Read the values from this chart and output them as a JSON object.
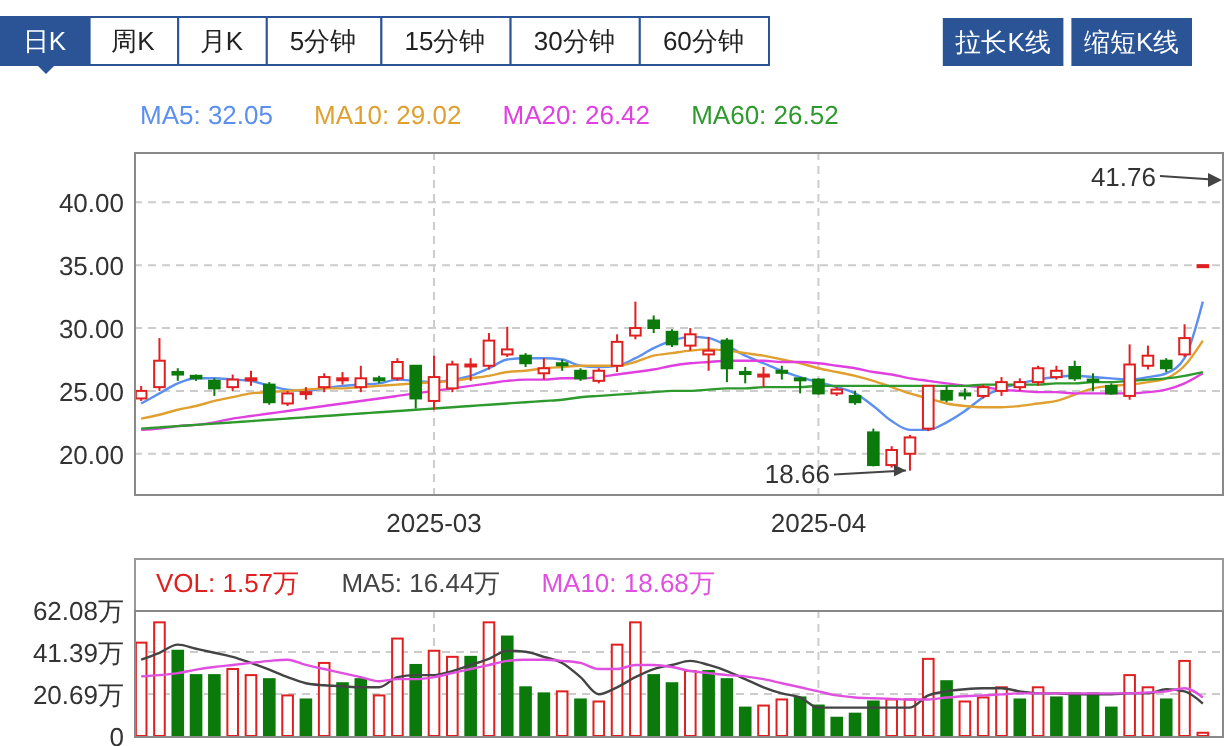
{
  "chart_data": [
    {
      "type": "other",
      "categories": [
        "日K",
        "周K",
        "月K",
        "5分钟",
        "15分钟",
        "30分钟",
        "60分钟"
      ],
      "annotations": [
        "拉长K线",
        "缩短K线"
      ]
    },
    {
      "type": "candlestick",
      "categories": [
        null,
        null,
        null,
        null,
        null,
        null,
        null,
        null,
        null,
        null,
        null,
        null,
        null,
        null,
        null,
        null,
        "2025-03",
        null,
        null,
        null,
        null,
        null,
        null,
        null,
        null,
        null,
        null,
        null,
        null,
        null,
        null,
        null,
        null,
        null,
        null,
        null,
        null,
        "2025-04",
        null,
        null,
        null,
        null,
        null,
        null,
        null,
        null,
        null,
        null,
        null,
        null,
        null,
        null,
        null,
        null,
        null,
        null,
        null,
        null,
        null
      ],
      "ohlc": [
        [
          24.4,
          25.4,
          24.2,
          25.0
        ],
        [
          25.3,
          29.2,
          25.0,
          27.4
        ],
        [
          26.5,
          26.8,
          25.8,
          26.3
        ],
        [
          26.2,
          26.3,
          25.8,
          26.0
        ],
        [
          25.8,
          26.0,
          24.6,
          25.2
        ],
        [
          25.3,
          26.3,
          25.0,
          25.9
        ],
        [
          25.9,
          26.6,
          25.4,
          26.0
        ],
        [
          25.5,
          25.7,
          23.9,
          24.1
        ],
        [
          24.0,
          25.0,
          23.8,
          24.8
        ],
        [
          24.8,
          25.3,
          24.3,
          24.9
        ],
        [
          25.3,
          26.4,
          24.9,
          26.1
        ],
        [
          25.9,
          26.5,
          25.5,
          26.0
        ],
        [
          25.3,
          27.0,
          24.9,
          26.0
        ],
        [
          26.0,
          26.2,
          25.6,
          25.9
        ],
        [
          26.0,
          27.6,
          25.8,
          27.3
        ],
        [
          27.0,
          27.0,
          23.6,
          24.4
        ],
        [
          24.2,
          27.8,
          23.5,
          26.1
        ],
        [
          25.2,
          27.4,
          24.9,
          27.1
        ],
        [
          27.0,
          27.6,
          25.8,
          27.1
        ],
        [
          27.0,
          29.6,
          26.7,
          29.0
        ],
        [
          27.9,
          30.1,
          27.7,
          28.3
        ],
        [
          27.8,
          28.0,
          26.9,
          27.2
        ],
        [
          26.4,
          27.6,
          25.9,
          26.8
        ],
        [
          27.2,
          27.5,
          26.6,
          27.1
        ],
        [
          26.6,
          26.8,
          25.8,
          26.0
        ],
        [
          25.8,
          26.8,
          25.6,
          26.6
        ],
        [
          27.0,
          29.5,
          26.5,
          28.9
        ],
        [
          29.4,
          32.1,
          29.1,
          30.0
        ],
        [
          30.6,
          31.0,
          29.6,
          30.0
        ],
        [
          29.7,
          29.9,
          28.5,
          28.7
        ],
        [
          28.6,
          30.0,
          28.2,
          29.5
        ],
        [
          27.9,
          29.3,
          26.6,
          28.2
        ],
        [
          29.0,
          29.2,
          25.7,
          26.8
        ],
        [
          26.5,
          26.9,
          25.6,
          26.4
        ],
        [
          26.2,
          26.9,
          25.3,
          26.3
        ],
        [
          26.6,
          27.0,
          25.9,
          26.5
        ],
        [
          26.0,
          26.1,
          24.8,
          25.9
        ],
        [
          25.9,
          26.0,
          24.7,
          24.8
        ],
        [
          24.8,
          25.3,
          24.6,
          25.1
        ],
        [
          24.6,
          25.0,
          23.9,
          24.1
        ],
        [
          21.7,
          22.0,
          19.0,
          19.1
        ],
        [
          19.1,
          20.6,
          18.9,
          20.3
        ],
        [
          20.0,
          21.5,
          18.66,
          21.3
        ],
        [
          22.0,
          25.4,
          21.8,
          25.4
        ],
        [
          25.0,
          25.4,
          24.1,
          24.3
        ],
        [
          24.8,
          25.2,
          24.3,
          24.7
        ],
        [
          24.6,
          25.5,
          24.4,
          25.3
        ],
        [
          25.0,
          26.1,
          24.6,
          25.7
        ],
        [
          25.3,
          26.0,
          25.0,
          25.7
        ],
        [
          25.7,
          27.0,
          25.4,
          26.8
        ],
        [
          26.1,
          27.0,
          25.9,
          26.6
        ],
        [
          26.9,
          27.4,
          25.8,
          26.0
        ],
        [
          25.9,
          26.4,
          25.0,
          25.8
        ],
        [
          25.4,
          25.6,
          24.7,
          24.8
        ],
        [
          24.6,
          28.7,
          24.3,
          27.1
        ],
        [
          27.0,
          28.6,
          26.7,
          27.8
        ],
        [
          27.4,
          27.6,
          26.5,
          26.8
        ],
        [
          27.9,
          30.3,
          27.7,
          29.2
        ],
        [
          35.0,
          35.0,
          35.0,
          35.0
        ]
      ],
      "series": [
        {
          "type": "line",
          "name": "MA5: 32.05",
          "color": "#5b8ff0",
          "values": [
            24.0,
            24.8,
            25.6,
            26.0,
            26.0,
            25.9,
            25.8,
            25.4,
            25.1,
            25.0,
            25.2,
            25.4,
            25.5,
            25.6,
            25.9,
            25.8,
            25.7,
            25.9,
            26.2,
            26.8,
            27.5,
            27.6,
            27.6,
            27.5,
            27.0,
            26.9,
            27.0,
            27.6,
            28.4,
            29.0,
            29.3,
            29.2,
            28.6,
            27.8,
            27.2,
            26.6,
            26.1,
            25.7,
            25.3,
            24.8,
            23.8,
            22.6,
            21.9,
            21.9,
            22.5,
            23.4,
            24.5,
            25.2,
            25.6,
            25.9,
            26.1,
            26.2,
            26.1,
            26.0,
            25.9,
            26.1,
            26.4,
            27.6,
            32.1
          ]
        },
        {
          "type": "line",
          "name": "MA10: 29.02",
          "color": "#e0a030",
          "values": [
            22.8,
            23.1,
            23.5,
            23.8,
            24.2,
            24.5,
            24.8,
            24.9,
            25.0,
            25.1,
            25.2,
            25.2,
            25.3,
            25.4,
            25.5,
            25.6,
            25.7,
            25.8,
            26.0,
            26.2,
            26.5,
            26.6,
            26.8,
            26.9,
            27.0,
            27.0,
            27.0,
            27.3,
            27.8,
            28.0,
            28.2,
            28.3,
            28.2,
            28.0,
            27.8,
            27.5,
            27.2,
            26.8,
            26.5,
            26.2,
            25.8,
            25.3,
            24.8,
            24.4,
            24.0,
            23.8,
            23.7,
            23.7,
            23.8,
            24.0,
            24.2,
            24.7,
            25.2,
            25.4,
            25.5,
            25.7,
            26.0,
            27.0,
            29.0
          ]
        },
        {
          "type": "line",
          "name": "MA20: 26.42",
          "color": "#e040e0",
          "values": [
            21.9,
            22.0,
            22.2,
            22.3,
            22.5,
            22.8,
            23.0,
            23.2,
            23.4,
            23.6,
            23.8,
            24.0,
            24.2,
            24.4,
            24.6,
            24.8,
            25.0,
            25.2,
            25.4,
            25.6,
            25.8,
            25.9,
            25.9,
            26.0,
            26.0,
            26.1,
            26.3,
            26.5,
            26.7,
            27.0,
            27.2,
            27.3,
            27.4,
            27.4,
            27.4,
            27.3,
            27.3,
            27.2,
            27.0,
            26.8,
            26.5,
            26.3,
            26.0,
            25.8,
            25.6,
            25.4,
            25.3,
            25.1,
            25.0,
            24.9,
            24.9,
            24.8,
            24.8,
            24.8,
            24.8,
            24.9,
            25.1,
            25.6,
            26.4
          ]
        },
        {
          "type": "line",
          "name": "MA60: 26.52",
          "color": "#2e9a2e",
          "values": [
            22.0,
            22.1,
            22.2,
            22.3,
            22.4,
            22.5,
            22.6,
            22.7,
            22.8,
            22.9,
            23.0,
            23.1,
            23.2,
            23.3,
            23.4,
            23.5,
            23.6,
            23.7,
            23.8,
            23.9,
            24.0,
            24.1,
            24.2,
            24.3,
            24.5,
            24.6,
            24.7,
            24.8,
            24.9,
            25.0,
            25.0,
            25.1,
            25.2,
            25.2,
            25.3,
            25.3,
            25.3,
            25.4,
            25.4,
            25.4,
            25.4,
            25.4,
            25.4,
            25.4,
            25.4,
            25.4,
            25.5,
            25.5,
            25.5,
            25.5,
            25.6,
            25.6,
            25.7,
            25.7,
            25.8,
            25.9,
            26.0,
            26.2,
            26.5
          ]
        }
      ],
      "ylim": [
        16.8,
        44
      ],
      "yticks": [
        {
          "value": 20,
          "label": "20.00"
        },
        {
          "value": 25,
          "label": "25.00"
        },
        {
          "value": 30,
          "label": "30.00"
        },
        {
          "value": 35,
          "label": "35.00"
        },
        {
          "value": 40,
          "label": "40.00"
        }
      ],
      "grid": true,
      "legend": "top left",
      "annotations": [
        "41.76",
        "18.66"
      ]
    },
    {
      "type": "bar",
      "categories": [
        null,
        null,
        null,
        null,
        null,
        null,
        null,
        null,
        null,
        null,
        null,
        null,
        null,
        null,
        null,
        null,
        "2025-03",
        null,
        null,
        null,
        null,
        null,
        null,
        null,
        null,
        null,
        null,
        null,
        null,
        null,
        null,
        null,
        null,
        null,
        null,
        null,
        null,
        "2025-04",
        null,
        null,
        null,
        null,
        null,
        null,
        null,
        null,
        null,
        null,
        null,
        null,
        null,
        null,
        null,
        null,
        null,
        null,
        null,
        null,
        null
      ],
      "tick_labels": "y",
      "grid": true,
      "legend": "top left",
      "series": [
        {
          "name": "VOL: 1.57万",
          "colors": [
            "#e02020",
            "#e02020",
            "#0b7a0b",
            "#0b7a0b",
            "#0b7a0b",
            "#e02020",
            "#e02020",
            "#0b7a0b",
            "#e02020",
            "#0b7a0b",
            "#e02020",
            "#0b7a0b",
            "#0b7a0b",
            "#e02020",
            "#e02020",
            "#0b7a0b",
            "#e02020",
            "#e02020",
            "#0b7a0b",
            "#e02020",
            "#0b7a0b",
            "#0b7a0b",
            "#0b7a0b",
            "#e02020",
            "#0b7a0b",
            "#e02020",
            "#e02020",
            "#e02020",
            "#0b7a0b",
            "#0b7a0b",
            "#e02020",
            "#0b7a0b",
            "#0b7a0b",
            "#0b7a0b",
            "#e02020",
            "#e02020",
            "#0b7a0b",
            "#0b7a0b",
            "#0b7a0b",
            "#0b7a0b",
            "#0b7a0b",
            "#e02020",
            "#e02020",
            "#e02020",
            "#0b7a0b",
            "#e02020",
            "#e02020",
            "#e02020",
            "#0b7a0b",
            "#e02020",
            "#0b7a0b",
            "#0b7a0b",
            "#0b7a0b",
            "#0b7a0b",
            "#e02020",
            "#e02020",
            "#0b7a0b",
            "#e02020",
            "#e02020"
          ],
          "values": [
            46,
            56,
            42,
            30,
            30,
            33,
            30,
            28,
            20,
            18,
            36,
            26,
            28,
            20,
            48,
            35,
            42,
            39,
            39,
            56,
            49,
            24,
            21,
            22,
            18,
            17,
            45,
            56,
            30,
            26,
            32,
            32,
            28,
            14,
            15,
            18,
            19,
            15,
            9,
            11,
            17,
            18,
            18,
            38,
            27,
            17,
            19,
            24,
            18,
            24,
            19,
            21,
            21,
            14,
            30,
            24,
            18,
            37,
            1.6
          ]
        },
        {
          "type": "line",
          "name": "MA5: 16.44万",
          "color": "#444444",
          "values": [
            37.6,
            41,
            45,
            43,
            41,
            39,
            36,
            32.7,
            29,
            26,
            25,
            24.5,
            24,
            24,
            29,
            30,
            30,
            32,
            35,
            38,
            42,
            41.5,
            39,
            36,
            29,
            20.6,
            24,
            29,
            33,
            35,
            37,
            35,
            32,
            28,
            24,
            21,
            19,
            14,
            14,
            14,
            14,
            14,
            14,
            20,
            22,
            23,
            23.5,
            23.5,
            22,
            21,
            21,
            20.6,
            20.6,
            20.6,
            21,
            21,
            23,
            22,
            16
          ]
        },
        {
          "type": "line",
          "name": "MA10: 18.68万",
          "color": "#e050e0",
          "values": [
            29.4,
            30,
            31,
            32.7,
            34,
            35,
            36,
            37,
            37.6,
            35,
            33,
            31,
            29,
            27,
            28,
            28,
            29,
            31,
            33,
            35,
            37,
            37.6,
            37.6,
            37,
            36,
            33,
            33,
            35,
            35,
            34,
            32,
            31,
            30,
            29.4,
            28,
            26,
            24,
            22,
            20,
            19,
            18.6,
            18.3,
            18,
            18,
            19,
            19.6,
            20,
            20.5,
            21,
            21,
            21,
            21,
            21,
            21,
            21,
            21.5,
            22,
            23.5,
            19
          ]
        }
      ],
      "ylim": [
        0,
        62.08
      ],
      "yticks": [
        0,
        {
          "value": 20.69,
          "label": "20.69万"
        },
        {
          "value": 41.39,
          "label": "41.39万"
        },
        {
          "value": 62.08,
          "label": "62.08万"
        }
      ]
    }
  ]
}
